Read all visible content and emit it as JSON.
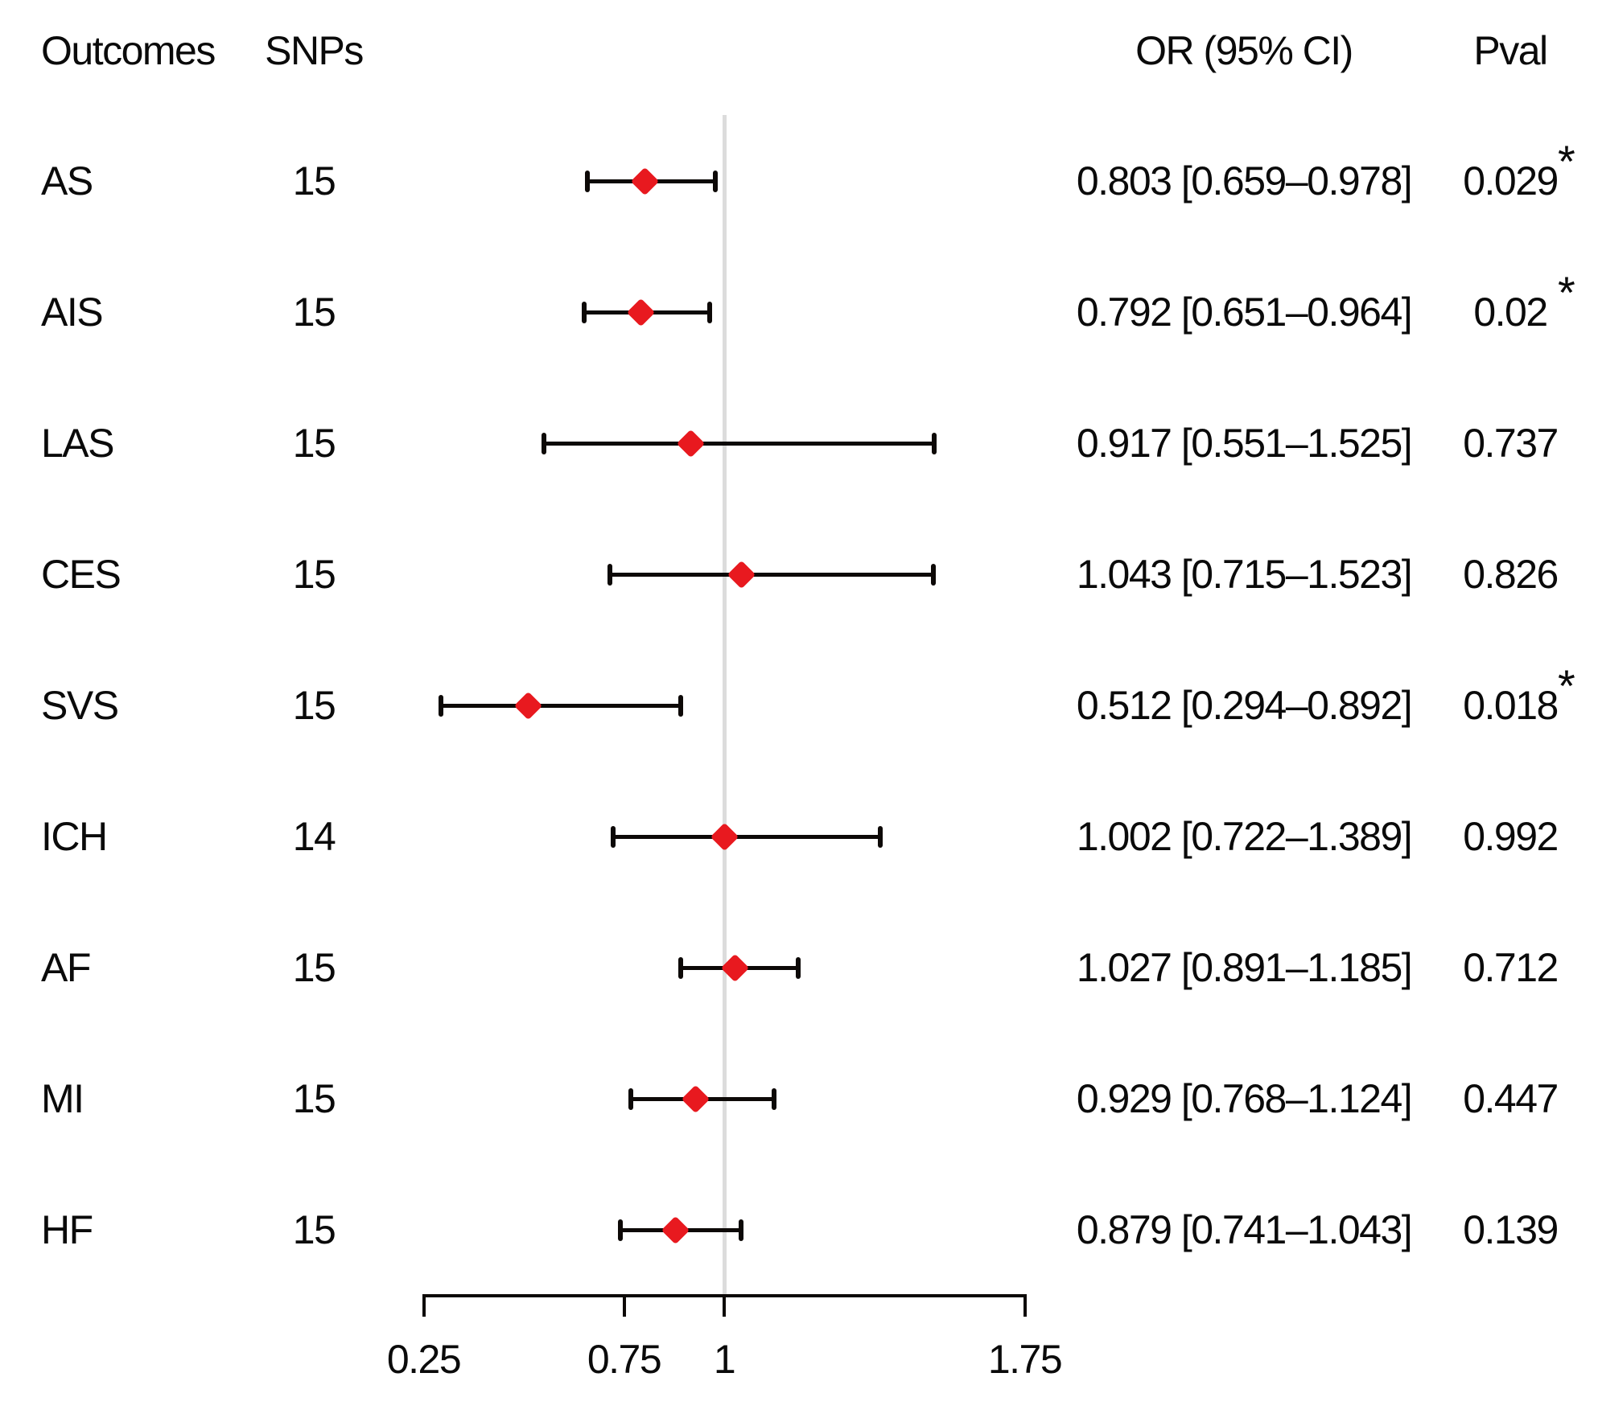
{
  "headers": {
    "outcomes": "Outcomes",
    "snps": "SNPs",
    "or_ci": "OR (95% CI)",
    "pval": "Pval"
  },
  "chart_data": {
    "type": "forest",
    "title": "",
    "x_axis": {
      "scale": "linear",
      "range": [
        0.25,
        1.75
      ],
      "ticks": [
        0.25,
        0.75,
        1,
        1.75
      ],
      "tick_labels": [
        "0.25",
        "0.75",
        "1",
        "1.75"
      ],
      "reference_line": 1
    },
    "significance_marker": "*",
    "colors": {
      "marker": "#e8191f",
      "bar": "#0d0907",
      "reference_line": "#dcdcdc",
      "text": "#0a0a0a"
    },
    "rows": [
      {
        "outcome": "AS",
        "snps": "15",
        "or": 0.803,
        "ci_low": 0.659,
        "ci_high": 0.978,
        "or_ci_label": "0.803 [0.659–0.978]",
        "pval": "0.029",
        "significant": true
      },
      {
        "outcome": "AIS",
        "snps": "15",
        "or": 0.792,
        "ci_low": 0.651,
        "ci_high": 0.964,
        "or_ci_label": "0.792 [0.651–0.964]",
        "pval": "0.02",
        "significant": true
      },
      {
        "outcome": "LAS",
        "snps": "15",
        "or": 0.917,
        "ci_low": 0.551,
        "ci_high": 1.525,
        "or_ci_label": "0.917 [0.551–1.525]",
        "pval": "0.737",
        "significant": false
      },
      {
        "outcome": "CES",
        "snps": "15",
        "or": 1.043,
        "ci_low": 0.715,
        "ci_high": 1.523,
        "or_ci_label": "1.043 [0.715–1.523]",
        "pval": "0.826",
        "significant": false
      },
      {
        "outcome": "SVS",
        "snps": "15",
        "or": 0.512,
        "ci_low": 0.294,
        "ci_high": 0.892,
        "or_ci_label": "0.512 [0.294–0.892]",
        "pval": "0.018",
        "significant": true
      },
      {
        "outcome": "ICH",
        "snps": "14",
        "or": 1.002,
        "ci_low": 0.722,
        "ci_high": 1.389,
        "or_ci_label": "1.002 [0.722–1.389]",
        "pval": "0.992",
        "significant": false
      },
      {
        "outcome": "AF",
        "snps": "15",
        "or": 1.027,
        "ci_low": 0.891,
        "ci_high": 1.185,
        "or_ci_label": "1.027 [0.891–1.185]",
        "pval": "0.712",
        "significant": false
      },
      {
        "outcome": "MI",
        "snps": "15",
        "or": 0.929,
        "ci_low": 0.768,
        "ci_high": 1.124,
        "or_ci_label": "0.929 [0.768–1.124]",
        "pval": "0.447",
        "significant": false
      },
      {
        "outcome": "HF",
        "snps": "15",
        "or": 0.879,
        "ci_low": 0.741,
        "ci_high": 1.043,
        "or_ci_label": "0.879 [0.741–1.043]",
        "pval": "0.139",
        "significant": false
      }
    ]
  }
}
